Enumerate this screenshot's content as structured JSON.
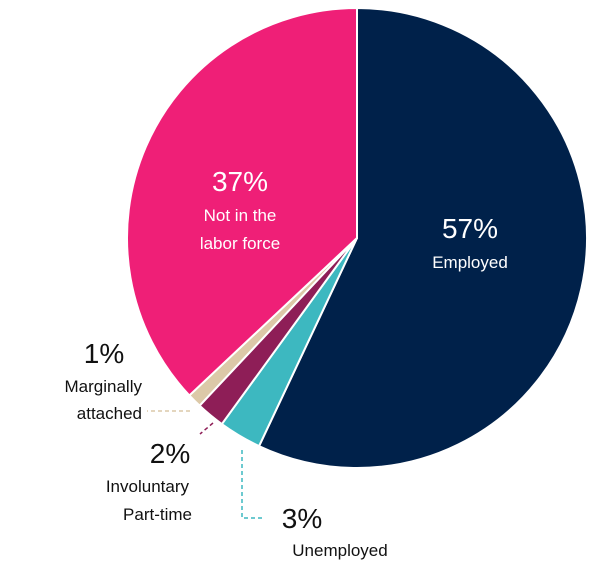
{
  "chart_data": {
    "type": "pie",
    "slices": [
      {
        "key": "employed",
        "percent_label": "57%",
        "name": "Employed",
        "value": 57,
        "color": "#00214a"
      },
      {
        "key": "unemployed",
        "percent_label": "3%",
        "name": "Unemployed",
        "value": 3,
        "color": "#3db8c0"
      },
      {
        "key": "involuntary",
        "percent_label": "2%",
        "name_lines": [
          "Involuntary",
          "Part-time"
        ],
        "value": 2,
        "color": "#8e1e57"
      },
      {
        "key": "marginal",
        "percent_label": "1%",
        "name_lines": [
          "Marginally",
          "attached"
        ],
        "value": 1,
        "color": "#dcc9a8"
      },
      {
        "key": "notlabor",
        "percent_label": "37%",
        "name_lines": [
          "Not in the",
          "labor force"
        ],
        "value": 37,
        "color": "#ef1f77"
      }
    ],
    "start_angle": "12 o'clock",
    "direction": "clockwise",
    "legend": "none"
  }
}
